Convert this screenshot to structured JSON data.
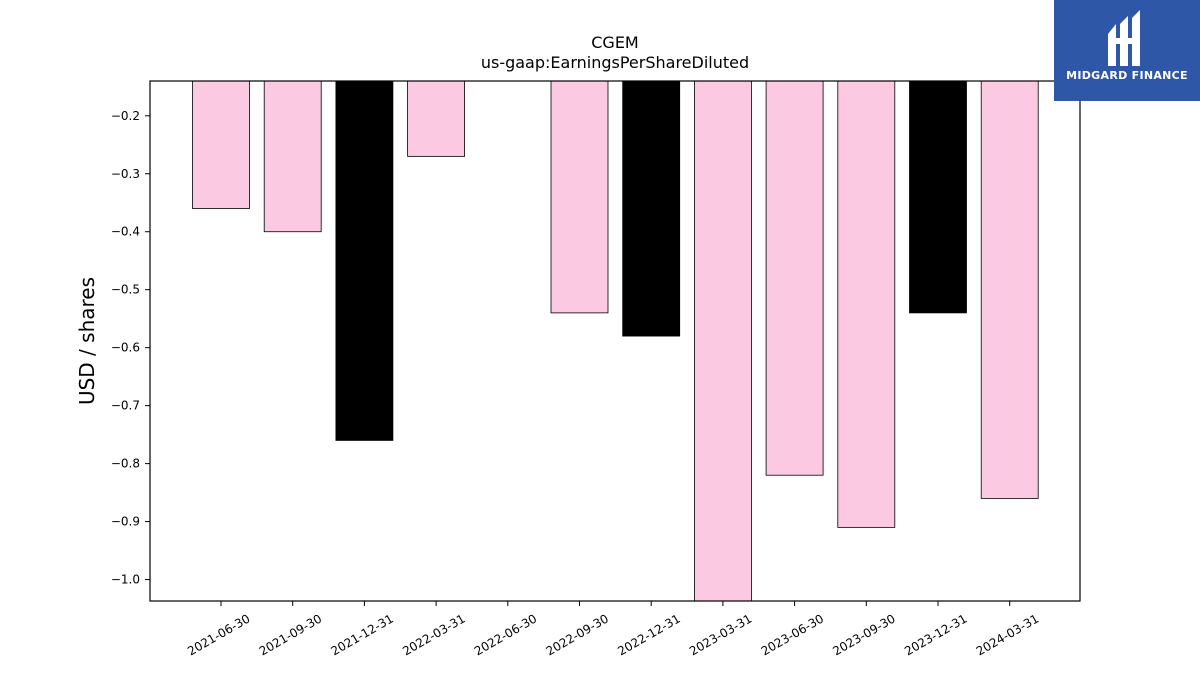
{
  "chart_data": {
    "type": "bar",
    "title": "CGEM",
    "subtitle": "us-gaap:EarningsPerShareDiluted",
    "ylabel": "USD / shares",
    "xlabel": "",
    "ylim": [
      -1.037,
      -0.14
    ],
    "yticks": [
      -0.2,
      -0.3,
      -0.4,
      -0.5,
      -0.6,
      -0.7,
      -0.8,
      -0.9,
      -1.0
    ],
    "ytick_labels": [
      "−0.2",
      "−0.3",
      "−0.4",
      "−0.5",
      "−0.6",
      "−0.7",
      "−0.8",
      "−0.9",
      "−1.0"
    ],
    "categories": [
      "2021-06-30",
      "2021-09-30",
      "2021-12-31",
      "2022-03-31",
      "2022-06-30",
      "2022-09-30",
      "2022-12-31",
      "2023-03-31",
      "2023-06-30",
      "2023-09-30",
      "2023-12-31",
      "2024-03-31"
    ],
    "values": [
      -0.36,
      -0.4,
      -0.76,
      -0.27,
      null,
      -0.54,
      -0.58,
      -1.04,
      -0.82,
      -0.91,
      -0.54,
      -0.86
    ],
    "bar_colors": [
      "#fbc9e2",
      "#fbc9e2",
      "#000000",
      "#fbc9e2",
      "#fbc9e2",
      "#fbc9e2",
      "#000000",
      "#fbc9e2",
      "#fbc9e2",
      "#fbc9e2",
      "#000000",
      "#fbc9e2"
    ],
    "grid": false,
    "legend": "none"
  },
  "logo": {
    "text": "MIDGARD FINANCE",
    "background": "#2f57a7",
    "icon": "midgard-logo-icon"
  }
}
